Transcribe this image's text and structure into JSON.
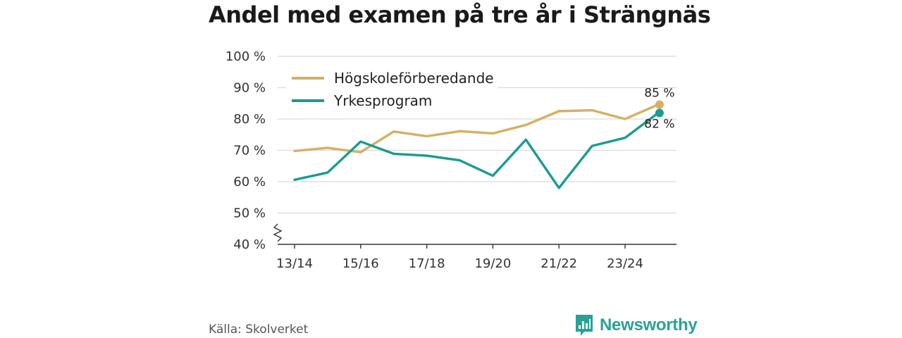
{
  "title": "Andel med examen på tre år i Strängnäs",
  "source": "Källa: Skolverket",
  "brand": {
    "name": "Newsworthy",
    "icon": "newsworthy-logo-icon"
  },
  "colors": {
    "series1": "#d4b062",
    "series2": "#1a9c92",
    "grid": "#d9d9d9",
    "axis": "#333333"
  },
  "chart_data": {
    "type": "line",
    "title": "Andel med examen på tre år i Strängnäs",
    "xlabel": "",
    "ylabel": "",
    "x": [
      "13/14",
      "14/15",
      "15/16",
      "16/17",
      "17/18",
      "18/19",
      "19/20",
      "20/21",
      "21/22",
      "22/23",
      "23/24",
      "24/25"
    ],
    "tick_labels": [
      "13/14",
      "15/16",
      "17/18",
      "19/20",
      "21/22",
      "23/24"
    ],
    "y_tick_labels": [
      "40 %",
      "50 %",
      "60 %",
      "70 %",
      "80 %",
      "90 %",
      "100 %"
    ],
    "ylim": [
      40,
      100
    ],
    "y_axis_break": true,
    "grid": true,
    "legend_position": "top-left",
    "series": [
      {
        "name": "Högskoleförberedande",
        "color": "#d4b062",
        "values": [
          69.8,
          70.8,
          69.4,
          76.0,
          74.5,
          76.1,
          75.4,
          78.1,
          82.5,
          82.8,
          80.0,
          84.6
        ],
        "end_label": "85 %"
      },
      {
        "name": "Yrkesprogram",
        "color": "#1a9c92",
        "values": [
          60.6,
          62.9,
          72.8,
          68.9,
          68.3,
          66.8,
          61.9,
          73.4,
          58.0,
          71.4,
          74.0,
          81.9
        ],
        "end_label": "82 %"
      }
    ]
  }
}
